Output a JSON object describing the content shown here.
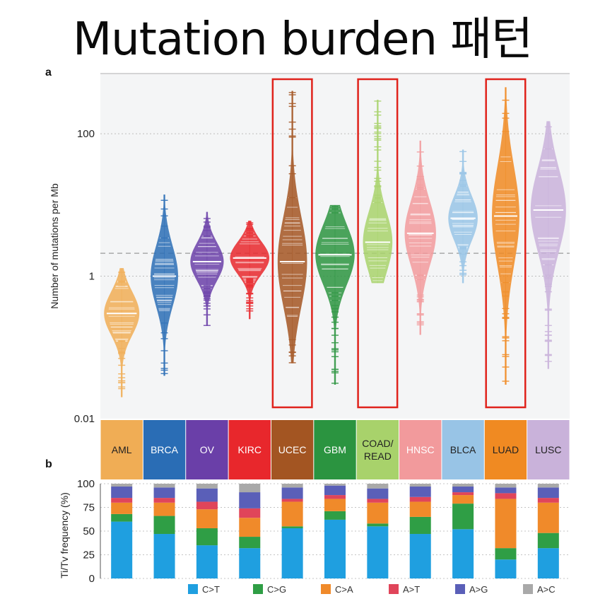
{
  "page": {
    "title": "Mutation burden 패턴"
  },
  "chart_data": [
    {
      "type": "scatter",
      "panel": "a",
      "ylabel": "Number of mutations per Mb",
      "yscale": "log",
      "ylim": [
        0.01,
        700
      ],
      "yticks": [
        {
          "value": 0.01,
          "label": "0.01"
        },
        {
          "value": 1,
          "label": "1"
        },
        {
          "value": 100,
          "label": "100"
        }
      ],
      "reference_line": 2.1,
      "highlighted": [
        "UCEC",
        "COAD/READ",
        "LUAD"
      ],
      "categories": [
        {
          "name": "AML",
          "lines": [
            "AML"
          ],
          "color": "#f0ad55",
          "text": "#222222",
          "median": 0.3,
          "min": 0.02,
          "max": 1.3,
          "width": 0.9
        },
        {
          "name": "BRCA",
          "lines": [
            "BRCA"
          ],
          "color": "#2a6db5",
          "text": "#ffffff",
          "median": 1.0,
          "min": 0.04,
          "max": 14,
          "width": 0.7
        },
        {
          "name": "OV",
          "lines": [
            "OV"
          ],
          "color": "#6a3fa8",
          "text": "#ffffff",
          "median": 1.6,
          "min": 0.2,
          "max": 8,
          "width": 0.85
        },
        {
          "name": "KIRC",
          "lines": [
            "KIRC"
          ],
          "color": "#e8272c",
          "text": "#ffffff",
          "median": 1.8,
          "min": 0.25,
          "max": 6,
          "width": 1.0
        },
        {
          "name": "UCEC",
          "lines": [
            "UCEC"
          ],
          "color": "#a35522",
          "text": "#ffffff",
          "median": 1.6,
          "min": 0.06,
          "max": 400,
          "width": 0.75
        },
        {
          "name": "GBM",
          "lines": [
            "GBM"
          ],
          "color": "#2b9440",
          "text": "#ffffff",
          "median": 2.0,
          "min": 0.03,
          "max": 10,
          "width": 1.0
        },
        {
          "name": "COAD/READ",
          "lines": [
            "COAD/",
            "READ"
          ],
          "color": "#a8d26b",
          "text": "#222222",
          "median": 3.0,
          "min": 0.8,
          "max": 300,
          "width": 0.75
        },
        {
          "name": "HNSC",
          "lines": [
            "HNSC"
          ],
          "color": "#f29a9c",
          "text": "#ffffff",
          "median": 4.0,
          "min": 0.15,
          "max": 80,
          "width": 0.8
        },
        {
          "name": "BLCA",
          "lines": [
            "BLCA"
          ],
          "color": "#98c4e6",
          "text": "#222222",
          "median": 6.5,
          "min": 0.8,
          "max": 60,
          "width": 0.75
        },
        {
          "name": "LUAD",
          "lines": [
            "LUAD"
          ],
          "color": "#f08a22",
          "text": "#222222",
          "median": 7.0,
          "min": 0.03,
          "max": 450,
          "width": 0.7
        },
        {
          "name": "LUSC",
          "lines": [
            "LUSC"
          ],
          "color": "#c9b2da",
          "text": "#222222",
          "median": 8.5,
          "min": 0.05,
          "max": 150,
          "width": 0.9
        }
      ]
    },
    {
      "type": "bar",
      "panel": "b",
      "stacked": true,
      "ylabel": "Ti/Tv frequency (%)",
      "ylim": [
        0,
        100
      ],
      "yticks": [
        0,
        25,
        50,
        75,
        100
      ],
      "categories": [
        "AML",
        "BRCA",
        "OV",
        "KIRC",
        "UCEC",
        "GBM",
        "COAD/READ",
        "HNSC",
        "BLCA",
        "LUAD",
        "LUSC"
      ],
      "series": [
        {
          "name": "C>T",
          "color": "#1f9fe0",
          "values": [
            60,
            47,
            35,
            32,
            53,
            62,
            55,
            47,
            52,
            20,
            32
          ]
        },
        {
          "name": "C>G",
          "color": "#2f9e45",
          "values": [
            8,
            19,
            18,
            12,
            2,
            9,
            3,
            18,
            27,
            12,
            16
          ]
        },
        {
          "name": "C>A",
          "color": "#f08a2a",
          "values": [
            12,
            14,
            20,
            20,
            26,
            13,
            22,
            16,
            9,
            52,
            32
          ]
        },
        {
          "name": "A>T",
          "color": "#e0455a",
          "values": [
            5,
            5,
            8,
            10,
            3,
            4,
            4,
            5,
            3,
            6,
            5
          ]
        },
        {
          "name": "A>G",
          "color": "#5a5fb8",
          "values": [
            12,
            11,
            14,
            17,
            12,
            10,
            11,
            11,
            6,
            6,
            11
          ]
        },
        {
          "name": "A>C",
          "color": "#a9a9a9",
          "values": [
            3,
            4,
            5,
            9,
            4,
            2,
            5,
            3,
            3,
            4,
            4
          ]
        }
      ]
    }
  ]
}
